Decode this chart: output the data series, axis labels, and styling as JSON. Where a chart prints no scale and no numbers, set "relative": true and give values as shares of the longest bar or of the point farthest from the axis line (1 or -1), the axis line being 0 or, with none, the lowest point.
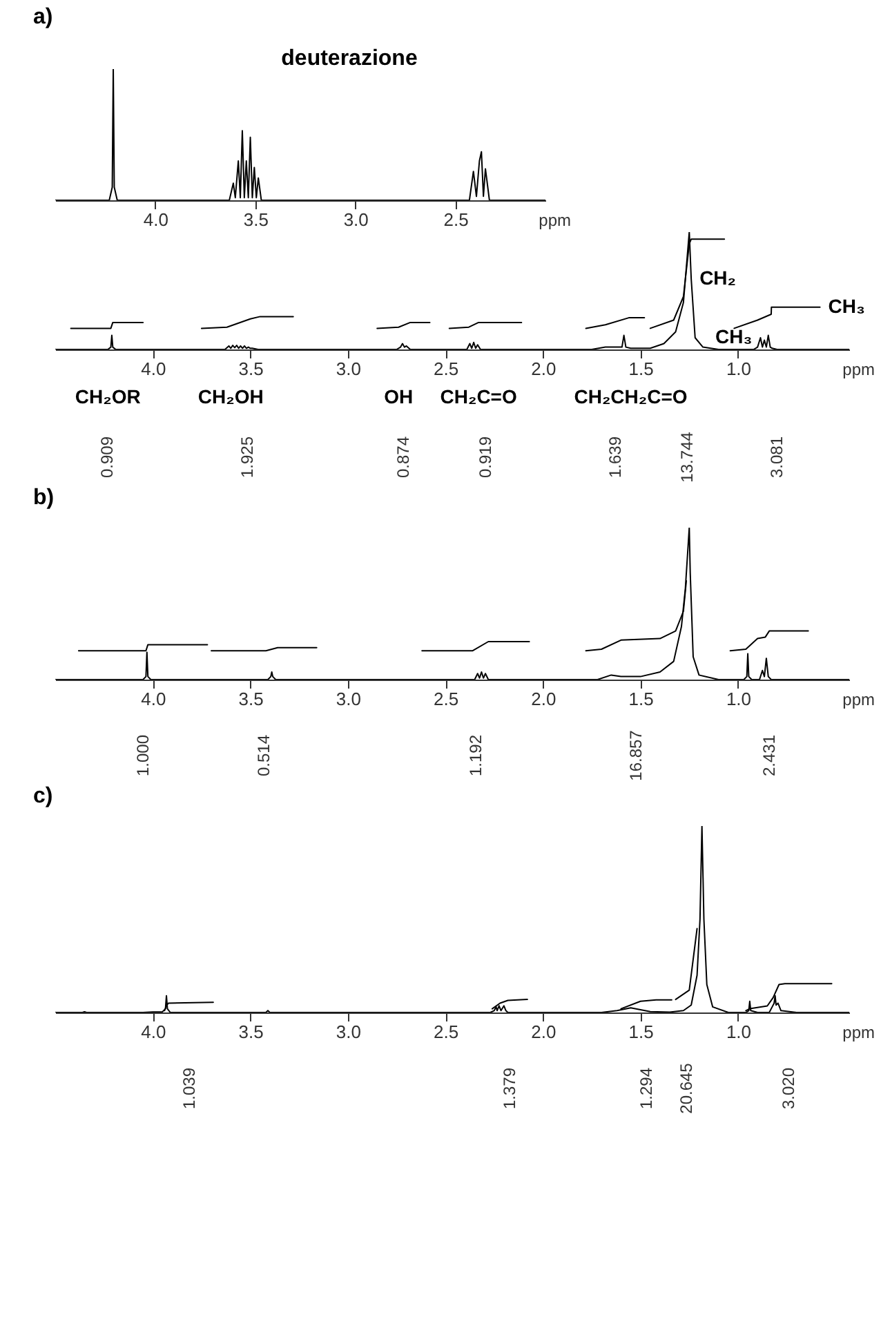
{
  "chart_data": [
    {
      "type": "line",
      "title": "a)",
      "annotations": [
        "deuterazione"
      ],
      "relative": true,
      "xlabel": "ppm",
      "xlim": [
        4.5,
        2.05
      ],
      "xticks": [
        {
          "value": 4,
          "label": "4.0"
        },
        {
          "value": 3.5,
          "label": "3.5"
        },
        {
          "value": 3,
          "label": "3.0"
        },
        {
          "value": 2.5,
          "label": "2.5"
        }
      ],
      "series": [
        {
          "color": "#000000",
          "x": [
            4.5,
            4.23,
            4.215,
            4.21,
            4.205,
            4.19,
            3.63,
            3.61,
            3.6,
            3.585,
            3.575,
            3.565,
            3.555,
            3.545,
            3.535,
            3.525,
            3.515,
            3.505,
            3.495,
            3.485,
            3.47,
            2.43,
            2.41,
            2.395,
            2.38,
            2.37,
            2.36,
            2.35,
            2.33,
            2.05
          ],
          "values": [
            0,
            0,
            0.1,
            1,
            0.1,
            0,
            0,
            0.13,
            0.02,
            0.3,
            0.02,
            0.53,
            0.02,
            0.3,
            0.02,
            0.48,
            0.02,
            0.25,
            0.02,
            0.17,
            0,
            0,
            0.22,
            0.03,
            0.3,
            0.37,
            0.03,
            0.24,
            0,
            0
          ]
        }
      ]
    },
    {
      "type": "line",
      "relative": true,
      "xlabel": "ppm",
      "xlim": [
        4.5,
        0.43
      ],
      "xticks": [
        {
          "value": 4,
          "label": "4.0"
        },
        {
          "value": 3.5,
          "label": "3.5"
        },
        {
          "value": 3,
          "label": "3.0"
        },
        {
          "value": 2.5,
          "label": "2.5"
        },
        {
          "value": 2,
          "label": "2.0"
        },
        {
          "value": 1.5,
          "label": "1.5"
        },
        {
          "value": 1,
          "label": "1.0"
        }
      ],
      "annotations": [
        {
          "text": "CH₂",
          "x": 1.24,
          "y": 0.6
        },
        {
          "text": "CH₃",
          "x": 0.58,
          "y": 0.36
        },
        {
          "text": "CH₃",
          "x": 0.885,
          "y": 0.1
        },
        {
          "text": "CH₂OR",
          "x": 4.23,
          "y": 0
        },
        {
          "text": "CH₂OH",
          "x": 3.6,
          "y": 0
        },
        {
          "text": "OH",
          "x": 2.74,
          "y": 0
        },
        {
          "text": "CH₂C=O",
          "x": 2.33,
          "y": 0
        },
        {
          "text": "CH₂CH₂C=O",
          "x": 1.55,
          "y": 0
        },
        "0.909",
        "1.925",
        "0.874",
        "0.919",
        "1.639",
        "13.744",
        "3.081"
      ],
      "series": [
        {
          "color": "#000000",
          "x": [
            4.5,
            4.23,
            4.215,
            4.21,
            4.205,
            4.19,
            3.63,
            3.61,
            3.6,
            3.59,
            3.58,
            3.57,
            3.56,
            3.55,
            3.54,
            3.53,
            3.52,
            3.51,
            3.5,
            3.49,
            3.46,
            2.75,
            2.73,
            2.72,
            2.71,
            2.7,
            2.68,
            2.39,
            2.375,
            2.365,
            2.355,
            2.345,
            2.335,
            2.32,
            1.75,
            1.68,
            1.62,
            1.595,
            1.585,
            1.575,
            1.55,
            1.45,
            1.38,
            1.32,
            1.28,
            1.26,
            1.25,
            1.24,
            1.22,
            1.18,
            1.1,
            0.92,
            0.9,
            0.885,
            0.875,
            0.865,
            0.855,
            0.845,
            0.835,
            0.825,
            0.8,
            0.43
          ],
          "values": [
            0,
            0,
            0.02,
            0.12,
            0.02,
            0,
            0,
            0.03,
            0.01,
            0.035,
            0.015,
            0.035,
            0.01,
            0.03,
            0.01,
            0.03,
            0.01,
            0.02,
            0.01,
            0.01,
            0,
            0,
            0.02,
            0.05,
            0.02,
            0.03,
            0,
            0,
            0.05,
            0.01,
            0.06,
            0.01,
            0.04,
            0,
            0,
            0.02,
            0.02,
            0.02,
            0.12,
            0.02,
            0.01,
            0.01,
            0.05,
            0.15,
            0.4,
            0.8,
            1,
            0.6,
            0.1,
            0.02,
            0,
            0,
            0.02,
            0.1,
            0.02,
            0.08,
            0.02,
            0.12,
            0.02,
            0.01,
            0,
            0
          ]
        },
        {
          "color": "#000000",
          "x": [
            4.42,
            4.215,
            4.205,
            4.05
          ],
          "values": [
            0.18,
            0.18,
            0.23,
            0.23
          ]
        },
        {
          "color": "#000000",
          "x": [
            3.75,
            3.62,
            3.5,
            3.45,
            3.28
          ],
          "values": [
            0.18,
            0.19,
            0.26,
            0.28,
            0.28
          ]
        },
        {
          "color": "#000000",
          "x": [
            2.85,
            2.74,
            2.68,
            2.58
          ],
          "values": [
            0.18,
            0.19,
            0.23,
            0.23
          ]
        },
        {
          "color": "#000000",
          "x": [
            2.48,
            2.38,
            2.33,
            2.11
          ],
          "values": [
            0.18,
            0.19,
            0.23,
            0.23
          ]
        },
        {
          "color": "#000000",
          "x": [
            1.78,
            1.68,
            1.56,
            1.48
          ],
          "values": [
            0.18,
            0.21,
            0.27,
            0.27
          ]
        },
        {
          "color": "#000000",
          "x": [
            1.45,
            1.33,
            1.28,
            1.25,
            1.24,
            1.07
          ],
          "values": [
            0.18,
            0.25,
            0.45,
            0.9,
            0.94,
            0.94
          ]
        },
        {
          "color": "#000000",
          "x": [
            1.02,
            0.9,
            0.83,
            0.829,
            0.58
          ],
          "values": [
            0.18,
            0.25,
            0.3,
            0.36,
            0.36
          ]
        }
      ]
    },
    {
      "type": "line",
      "title": "b)",
      "relative": true,
      "xlabel": "ppm",
      "xlim": [
        4.5,
        0.43
      ],
      "xticks": [
        {
          "value": 4,
          "label": "4.0"
        },
        {
          "value": 3.5,
          "label": "3.5"
        },
        {
          "value": 3,
          "label": "3.0"
        },
        {
          "value": 2.5,
          "label": "2.5"
        },
        {
          "value": 2,
          "label": "2.0"
        },
        {
          "value": 1.5,
          "label": "1.5"
        },
        {
          "value": 1,
          "label": "1.0"
        }
      ],
      "annotations": [
        "1.000",
        "0.514",
        "1.192",
        "16.857",
        "2.431"
      ],
      "series": [
        {
          "color": "#000000",
          "x": [
            4.5,
            4.05,
            4.035,
            4.03,
            4.025,
            4.01,
            3.41,
            3.395,
            3.39,
            3.385,
            3.37,
            2.35,
            2.335,
            2.325,
            2.315,
            2.305,
            2.295,
            2.28,
            1.72,
            1.65,
            1.6,
            1.5,
            1.4,
            1.33,
            1.29,
            1.27,
            1.255,
            1.25,
            1.245,
            1.23,
            1.2,
            1.1,
            0.97,
            0.955,
            0.95,
            0.945,
            0.93,
            0.89,
            0.875,
            0.865,
            0.855,
            0.845,
            0.83,
            0.43
          ],
          "values": [
            0,
            0,
            0.02,
            0.18,
            0.02,
            0,
            0,
            0.02,
            0.05,
            0.02,
            0,
            0,
            0.04,
            0.01,
            0.05,
            0.01,
            0.04,
            0,
            0,
            0.03,
            0.02,
            0.02,
            0.05,
            0.12,
            0.35,
            0.6,
            0.9,
            1,
            0.7,
            0.15,
            0.03,
            0,
            0,
            0.02,
            0.17,
            0.02,
            0,
            0,
            0.06,
            0.02,
            0.14,
            0.02,
            0,
            0
          ]
        },
        {
          "color": "#000000",
          "x": [
            4.38,
            4.035,
            4.025,
            3.72
          ],
          "values": [
            0.19,
            0.19,
            0.23,
            0.23
          ]
        },
        {
          "color": "#000000",
          "x": [
            3.7,
            3.42,
            3.36,
            3.16
          ],
          "values": [
            0.19,
            0.19,
            0.21,
            0.21
          ]
        },
        {
          "color": "#000000",
          "x": [
            2.62,
            2.36,
            2.28,
            2.07
          ],
          "values": [
            0.19,
            0.19,
            0.25,
            0.25
          ]
        },
        {
          "color": "#000000",
          "x": [
            1.78,
            1.7,
            1.6,
            1.4,
            1.32,
            1.28,
            1.265
          ],
          "values": [
            0.19,
            0.2,
            0.26,
            0.27,
            0.32,
            0.45,
            0.65
          ]
        },
        {
          "color": "#000000",
          "x": [
            1.04,
            0.96,
            0.9,
            0.86,
            0.84,
            0.64
          ],
          "values": [
            0.19,
            0.2,
            0.27,
            0.28,
            0.32,
            0.32
          ]
        }
      ]
    },
    {
      "type": "line",
      "title": "c)",
      "relative": true,
      "xlabel": "ppm",
      "xlim": [
        4.5,
        0.43
      ],
      "xticks": [
        {
          "value": 4,
          "label": "4.0"
        },
        {
          "value": 3.5,
          "label": "3.5"
        },
        {
          "value": 3,
          "label": "3.0"
        },
        {
          "value": 2.5,
          "label": "2.5"
        },
        {
          "value": 2,
          "label": "2.0"
        },
        {
          "value": 1.5,
          "label": "1.5"
        },
        {
          "value": 1,
          "label": "1.0"
        }
      ],
      "annotations": [
        "1.039",
        "1.379",
        "1.294",
        "20.645",
        "3.020"
      ],
      "series": [
        {
          "color": "#000000",
          "x": [
            4.5,
            4.36,
            4.35,
            4.34,
            4.05,
            4.0,
            3.95,
            3.935,
            3.93,
            3.925,
            3.91,
            3.42,
            3.41,
            3.4,
            2.27,
            2.25,
            2.24,
            2.235,
            2.225,
            2.215,
            2.2,
            2.19,
            2.18,
            1.7,
            1.62,
            1.55,
            1.5,
            1.45,
            1.35,
            1.28,
            1.24,
            1.21,
            1.195,
            1.185,
            1.175,
            1.16,
            1.13,
            1.05,
            0.96,
            0.945,
            0.94,
            0.935,
            0.9,
            0.84,
            0.825,
            0.815,
            0.81,
            0.805,
            0.795,
            0.78,
            0.7,
            0.43
          ],
          "values": [
            0,
            0,
            0.004,
            0,
            0,
            0.003,
            0.004,
            0.02,
            0.09,
            0.02,
            0,
            0,
            0.01,
            0,
            0,
            0.01,
            0.03,
            0.01,
            0.036,
            0.01,
            0.036,
            0.01,
            0,
            0,
            0.01,
            0.025,
            0.015,
            0.005,
            0.002,
            0.01,
            0.04,
            0.2,
            0.5,
            1,
            0.5,
            0.15,
            0.03,
            0,
            0,
            0.01,
            0.06,
            0.01,
            0,
            0,
            0.03,
            0.05,
            0.09,
            0.04,
            0.05,
            0.01,
            0,
            0
          ]
        },
        {
          "color": "#000000",
          "x": [
            3.94,
            3.93,
            3.92,
            3.69
          ],
          "values": [
            0.01,
            0.036,
            0.05,
            0.055
          ]
        },
        {
          "color": "#000000",
          "x": [
            2.26,
            2.22,
            2.18,
            2.08
          ],
          "values": [
            0.02,
            0.05,
            0.065,
            0.07
          ]
        },
        {
          "color": "#000000",
          "x": [
            1.6,
            1.5,
            1.42,
            1.34
          ],
          "values": [
            0.02,
            0.06,
            0.068,
            0.068
          ]
        },
        {
          "color": "#000000",
          "x": [
            1.32,
            1.25,
            1.21
          ],
          "values": [
            0.07,
            0.12,
            0.45
          ]
        },
        {
          "color": "#000000",
          "x": [
            0.96,
            0.94,
            0.85,
            0.82,
            0.79,
            0.76,
            0.52
          ],
          "values": [
            0.01,
            0.02,
            0.035,
            0.08,
            0.15,
            0.155,
            0.155
          ]
        }
      ]
    }
  ]
}
